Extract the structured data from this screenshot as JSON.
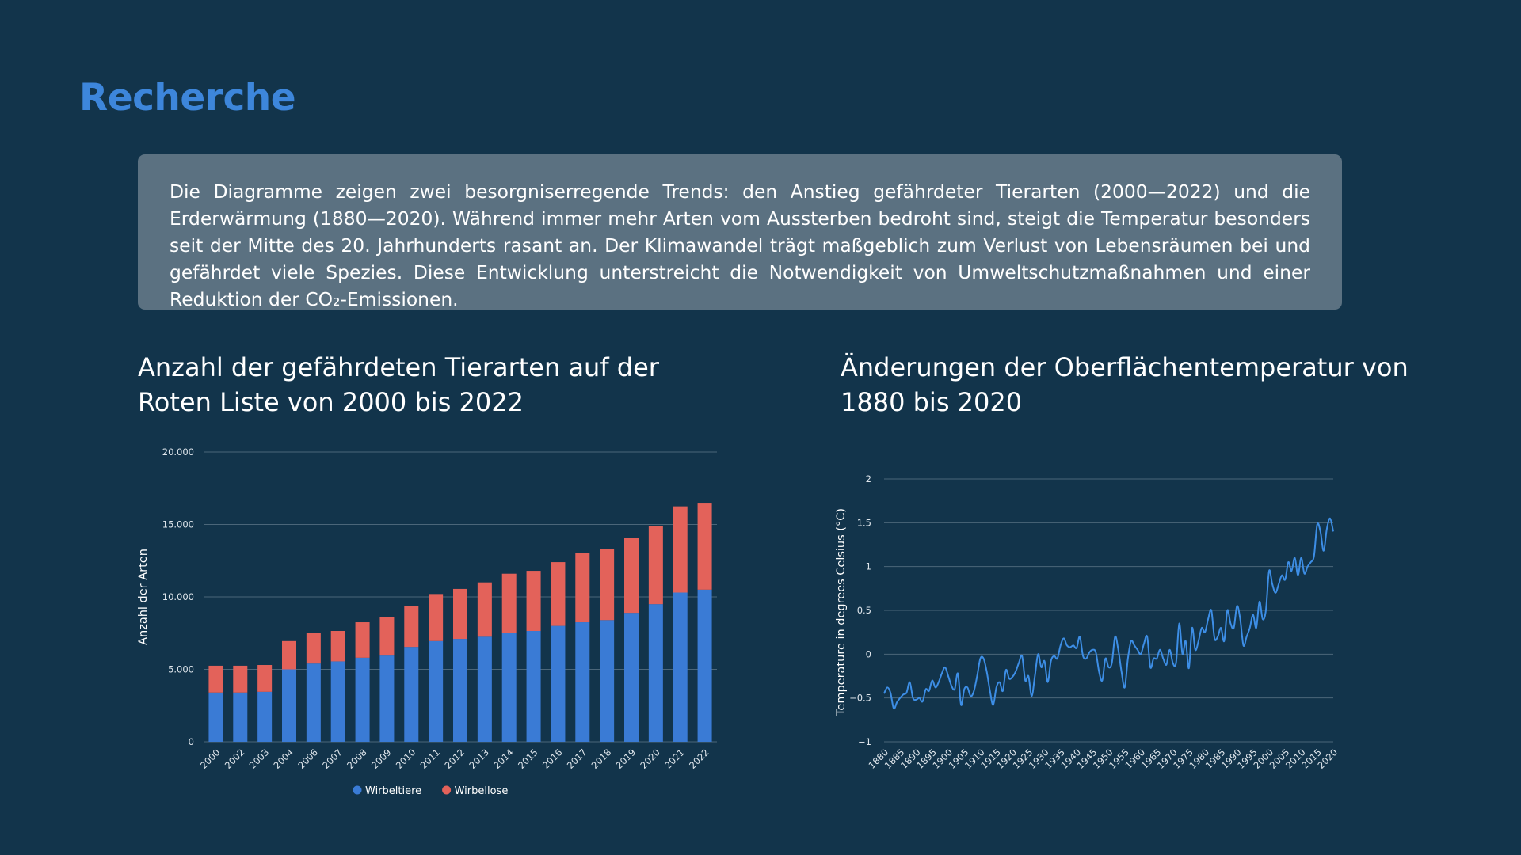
{
  "page": {
    "title": "Recherche",
    "summary": "Die Diagramme zeigen zwei besorgniserregende Trends: den Anstieg gefährdeter Tierarten (2000—2022) und die Erderwärmung (1880—2020). Während immer mehr Arten vom Aussterben bedroht sind, steigt die Temperatur besonders seit der Mitte des 20. Jahrhunderts rasant an. Der Klimawandel trägt maßgeblich zum Verlust von Lebensräumen bei und gefährdet viele Spezies. Diese Entwicklung unterstreicht die Notwendigkeit von Umweltschutzmaßnahmen und einer Reduktion der CO₂-Emissionen."
  },
  "colors": {
    "background": "#12344b",
    "title": "#3d86db",
    "summary_box": "#5b7181",
    "vertebrates": "#3a7bd5",
    "invertebrates": "#e3625a",
    "temperature_line": "#3d8ee6",
    "grid": "#4b6679"
  },
  "chart_data": [
    {
      "type": "bar",
      "stacked": true,
      "title": "Anzahl der gefährdeten Tierarten auf der Roten Liste von 2000 bis 2022",
      "xlabel": "",
      "ylabel": "Anzahl der Arten",
      "ylim": [
        0,
        20000
      ],
      "yticks": [
        0,
        5000,
        10000,
        15000,
        20000
      ],
      "ytick_labels": [
        "0",
        "5.000",
        "10.000",
        "15.000",
        "20.000"
      ],
      "categories": [
        "2000",
        "2002",
        "2003",
        "2004",
        "2006",
        "2007",
        "2008",
        "2009",
        "2010",
        "2011",
        "2012",
        "2013",
        "2014",
        "2015",
        "2016",
        "2017",
        "2018",
        "2019",
        "2020",
        "2021",
        "2022"
      ],
      "series": [
        {
          "name": "Wirbeltiere",
          "color": "#3a7bd5",
          "values": [
            3400,
            3400,
            3450,
            5000,
            5400,
            5550,
            5800,
            5950,
            6550,
            6950,
            7100,
            7250,
            7500,
            7650,
            8000,
            8250,
            8400,
            8900,
            9500,
            10300,
            10500
          ]
        },
        {
          "name": "Wirbellose",
          "color": "#e3625a",
          "values": [
            1850,
            1850,
            1850,
            1950,
            2100,
            2100,
            2450,
            2650,
            2800,
            3250,
            3450,
            3750,
            4100,
            4150,
            4400,
            4800,
            4900,
            5150,
            5400,
            5950,
            6000
          ]
        }
      ],
      "legend": "bottom",
      "grid": true
    },
    {
      "type": "line",
      "title": "Änderungen der Oberflächentemperatur von 1880 bis 2020",
      "xlabel": "",
      "ylabel": "Temperature in degrees Celsius (°C)",
      "ylim": [
        -1,
        2
      ],
      "yticks": [
        -1,
        -0.5,
        0,
        0.5,
        1,
        1.5,
        2
      ],
      "ytick_labels": [
        "−1",
        "−0.5",
        "0",
        "0.5",
        "1",
        "1.5",
        "2"
      ],
      "xlim": [
        1880,
        2020
      ],
      "xticks": [
        1880,
        1885,
        1890,
        1895,
        1900,
        1905,
        1910,
        1915,
        1920,
        1925,
        1930,
        1935,
        1940,
        1945,
        1950,
        1955,
        1960,
        1965,
        1970,
        1975,
        1980,
        1985,
        1990,
        1995,
        2000,
        2005,
        2010,
        2015,
        2020
      ],
      "series": [
        {
          "name": "",
          "color": "#3d8ee6",
          "x": [
            1880,
            1881,
            1882,
            1883,
            1884,
            1885,
            1886,
            1887,
            1888,
            1889,
            1890,
            1891,
            1892,
            1893,
            1894,
            1895,
            1896,
            1897,
            1898,
            1899,
            1900,
            1901,
            1902,
            1903,
            1904,
            1905,
            1906,
            1907,
            1908,
            1909,
            1910,
            1911,
            1912,
            1913,
            1914,
            1915,
            1916,
            1917,
            1918,
            1919,
            1920,
            1921,
            1922,
            1923,
            1924,
            1925,
            1926,
            1927,
            1928,
            1929,
            1930,
            1931,
            1932,
            1933,
            1934,
            1935,
            1936,
            1937,
            1938,
            1939,
            1940,
            1941,
            1942,
            1943,
            1944,
            1945,
            1946,
            1947,
            1948,
            1949,
            1950,
            1951,
            1952,
            1953,
            1954,
            1955,
            1956,
            1957,
            1958,
            1959,
            1960,
            1961,
            1962,
            1963,
            1964,
            1965,
            1966,
            1967,
            1968,
            1969,
            1970,
            1971,
            1972,
            1973,
            1974,
            1975,
            1976,
            1977,
            1978,
            1979,
            1980,
            1981,
            1982,
            1983,
            1984,
            1985,
            1986,
            1987,
            1988,
            1989,
            1990,
            1991,
            1992,
            1993,
            1994,
            1995,
            1996,
            1997,
            1998,
            1999,
            2000,
            2001,
            2002,
            2003,
            2004,
            2005,
            2006,
            2007,
            2008,
            2009,
            2010,
            2011,
            2012,
            2013,
            2014,
            2015,
            2016,
            2017,
            2018,
            2019,
            2020
          ],
          "y": [
            -0.45,
            -0.38,
            -0.44,
            -0.62,
            -0.55,
            -0.5,
            -0.46,
            -0.44,
            -0.32,
            -0.5,
            -0.52,
            -0.5,
            -0.54,
            -0.4,
            -0.42,
            -0.3,
            -0.38,
            -0.32,
            -0.22,
            -0.15,
            -0.25,
            -0.36,
            -0.4,
            -0.22,
            -0.58,
            -0.4,
            -0.38,
            -0.48,
            -0.42,
            -0.25,
            -0.05,
            -0.05,
            -0.2,
            -0.42,
            -0.58,
            -0.38,
            -0.32,
            -0.42,
            -0.18,
            -0.28,
            -0.26,
            -0.2,
            -0.1,
            -0.02,
            -0.3,
            -0.25,
            -0.48,
            -0.25,
            0.0,
            -0.15,
            -0.08,
            -0.32,
            -0.08,
            -0.02,
            -0.05,
            0.1,
            0.18,
            0.1,
            0.08,
            0.1,
            0.07,
            0.2,
            -0.02,
            -0.05,
            0.02,
            0.05,
            0.02,
            -0.2,
            -0.3,
            -0.05,
            -0.15,
            -0.1,
            0.2,
            0.05,
            -0.2,
            -0.38,
            -0.05,
            0.15,
            0.1,
            0.05,
            0.0,
            0.12,
            0.2,
            -0.15,
            -0.05,
            -0.05,
            0.05,
            -0.05,
            -0.12,
            0.05,
            -0.1,
            -0.1,
            0.35,
            0.0,
            0.15,
            -0.16,
            0.3,
            0.05,
            0.15,
            0.3,
            0.25,
            0.4,
            0.5,
            0.18,
            0.2,
            0.3,
            0.15,
            0.5,
            0.35,
            0.3,
            0.55,
            0.4,
            0.1,
            0.2,
            0.3,
            0.45,
            0.3,
            0.6,
            0.4,
            0.5,
            0.95,
            0.8,
            0.7,
            0.8,
            0.9,
            0.85,
            1.05,
            0.95,
            1.1,
            0.9,
            1.1,
            0.92,
            1.0,
            1.05,
            1.12,
            1.48,
            1.4,
            1.18,
            1.43,
            1.55,
            1.4
          ]
        }
      ],
      "grid": true
    }
  ]
}
